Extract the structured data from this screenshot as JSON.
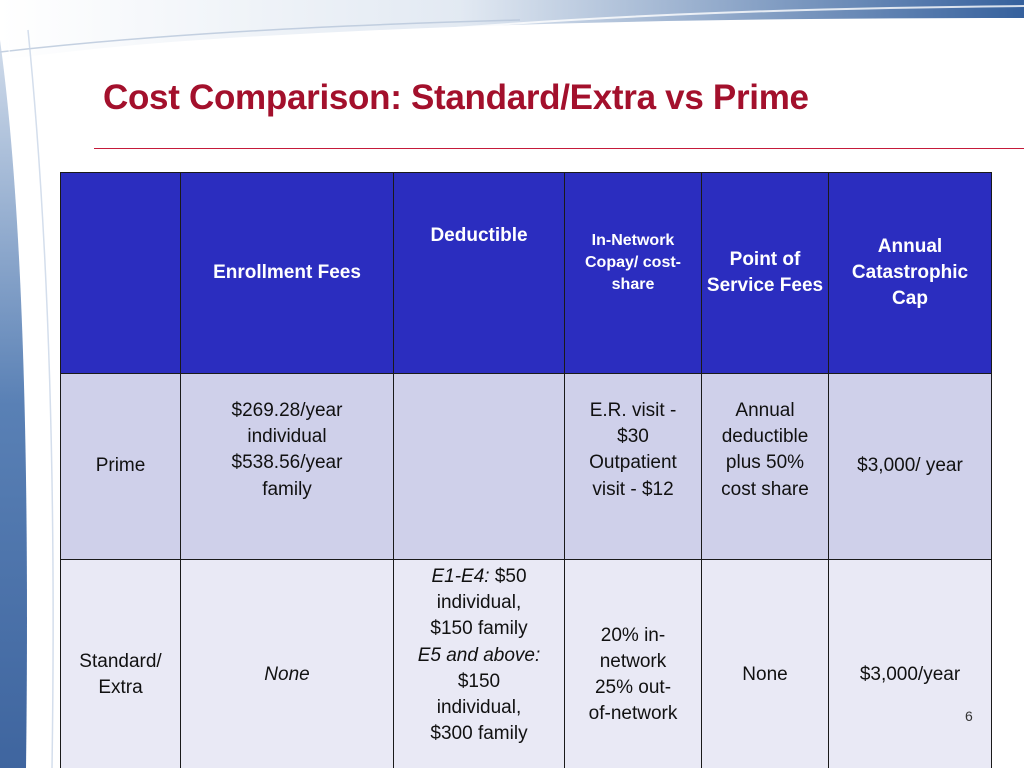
{
  "title": "Cost Comparison: Standard/Extra vs Prime",
  "colors": {
    "title": "#a3102c",
    "header_bg": "#2b2dbf",
    "row1_bg": "#cfd0ea",
    "row2_bg": "#e9e9f5"
  },
  "table": {
    "headers": [
      "",
      "Enrollment Fees",
      "Deductible",
      "In-Network Copay/ cost-share",
      "Point of Service Fees",
      "Annual Catastrophic Cap"
    ],
    "prime": {
      "label": "Prime",
      "enrollment_1": "$269.28/year",
      "enrollment_2": "individual",
      "enrollment_3": "$538.56/year",
      "enrollment_4": "family",
      "deductible": "",
      "copay_1": "E.R. visit -",
      "copay_2": "$30",
      "copay_3": "Outpatient",
      "copay_4": "visit - $12",
      "pos_1": "Annual",
      "pos_2": "deductible",
      "pos_3": "plus 50%",
      "pos_4": "cost share",
      "cap": "$3,000/ year"
    },
    "standard": {
      "label_1": "Standard/",
      "label_2": "Extra",
      "enrollment": "None",
      "ded_e1_label": "E1-E4:",
      "ded_e1_value": "$50",
      "ded_2": "individual,",
      "ded_3": "$150 family",
      "ded_e5_label": "E5 and above:",
      "ded_5": "$150",
      "ded_6": "individual,",
      "ded_7": "$300 family",
      "copay_1": "20% in-",
      "copay_2": "network",
      "copay_3": "25% out-",
      "copay_4": "of-network",
      "pos": "None",
      "cap": "$3,000/year"
    }
  },
  "page_number": "6"
}
